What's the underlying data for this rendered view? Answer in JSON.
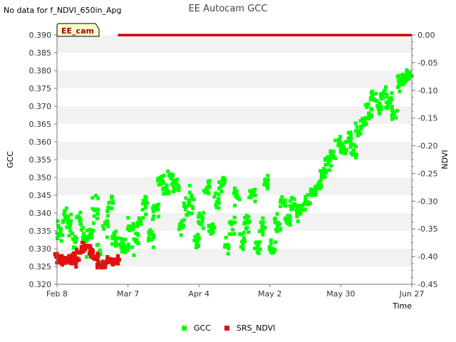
{
  "chart_data": {
    "type": "scatter",
    "title": "EE Autocam GCC",
    "note": "No data for f_NDVI_650in_Apg",
    "badge": "EE_cam",
    "xlabel": "Time",
    "ylabel": "GCC",
    "y2label": "NDVI",
    "xlim": [
      "2024-02-08",
      "2024-06-27"
    ],
    "ylim": [
      0.32,
      0.39
    ],
    "y2lim": [
      -0.45,
      0.0
    ],
    "x_ticks": [
      {
        "date": "2024-02-08",
        "label": "Feb 8"
      },
      {
        "date": "2024-03-07",
        "label": "Mar 7"
      },
      {
        "date": "2024-04-04",
        "label": "Apr 4"
      },
      {
        "date": "2024-05-02",
        "label": "May 2"
      },
      {
        "date": "2024-05-30",
        "label": "May 30"
      },
      {
        "date": "2024-06-27",
        "label": "Jun 27"
      }
    ],
    "y_ticks": [
      "0.320",
      "0.325",
      "0.330",
      "0.335",
      "0.340",
      "0.345",
      "0.350",
      "0.355",
      "0.360",
      "0.365",
      "0.370",
      "0.375",
      "0.380",
      "0.385",
      "0.390"
    ],
    "y2_ticks": [
      "-0.45",
      "-0.40",
      "-0.35",
      "-0.30",
      "-0.25",
      "-0.20",
      "-0.15",
      "-0.10",
      "-0.05",
      "0.00"
    ],
    "grid": "horizontal bands",
    "legend_position": "bottom",
    "series": [
      {
        "name": "GCC",
        "axis": "left",
        "color": "#00ff00",
        "x": [
          "2024-02-09",
          "2024-02-11",
          "2024-02-13",
          "2024-02-15",
          "2024-02-17",
          "2024-02-19",
          "2024-02-21",
          "2024-02-23",
          "2024-02-25",
          "2024-02-27",
          "2024-02-29",
          "2024-03-02",
          "2024-03-04",
          "2024-03-06",
          "2024-03-08",
          "2024-03-10",
          "2024-03-12",
          "2024-03-14",
          "2024-03-16",
          "2024-03-18",
          "2024-03-20",
          "2024-03-22",
          "2024-03-24",
          "2024-03-26",
          "2024-03-28",
          "2024-03-30",
          "2024-04-01",
          "2024-04-03",
          "2024-04-05",
          "2024-04-07",
          "2024-04-09",
          "2024-04-11",
          "2024-04-13",
          "2024-04-15",
          "2024-04-17",
          "2024-04-19",
          "2024-04-21",
          "2024-04-23",
          "2024-04-25",
          "2024-04-27",
          "2024-04-29",
          "2024-05-01",
          "2024-05-03",
          "2024-05-05",
          "2024-05-07",
          "2024-05-09",
          "2024-05-11",
          "2024-05-13",
          "2024-05-15",
          "2024-05-17",
          "2024-05-19",
          "2024-05-21",
          "2024-05-23",
          "2024-05-25",
          "2024-05-27",
          "2024-05-29",
          "2024-05-31",
          "2024-06-02",
          "2024-06-04",
          "2024-06-06",
          "2024-06-08",
          "2024-06-10",
          "2024-06-12",
          "2024-06-14",
          "2024-06-16",
          "2024-06-18",
          "2024-06-20",
          "2024-06-22",
          "2024-06-24",
          "2024-06-26"
        ],
        "y": [
          0.334,
          0.34,
          0.336,
          0.332,
          0.338,
          0.331,
          0.334,
          0.341,
          0.329,
          0.337,
          0.343,
          0.333,
          0.331,
          0.33,
          0.336,
          0.332,
          0.338,
          0.343,
          0.334,
          0.341,
          0.349,
          0.346,
          0.35,
          0.348,
          0.336,
          0.342,
          0.344,
          0.332,
          0.339,
          0.347,
          0.336,
          0.343,
          0.348,
          0.331,
          0.337,
          0.345,
          0.332,
          0.338,
          0.345,
          0.331,
          0.336,
          0.348,
          0.33,
          0.337,
          0.343,
          0.339,
          0.342,
          0.34,
          0.341,
          0.343,
          0.346,
          0.348,
          0.351,
          0.354,
          0.356,
          0.359,
          0.358,
          0.361,
          0.357,
          0.363,
          0.366,
          0.368,
          0.372,
          0.369,
          0.374,
          0.371,
          0.368,
          0.376,
          0.378,
          0.379
        ],
        "spread": [
          0.007,
          0.007,
          0.006,
          0.006,
          0.006,
          0.006,
          0.006,
          0.007,
          0.006,
          0.007,
          0.006,
          0.005,
          0.004,
          0.004,
          0.005,
          0.006,
          0.006,
          0.005,
          0.006,
          0.005,
          0.003,
          0.004,
          0.004,
          0.004,
          0.005,
          0.006,
          0.006,
          0.004,
          0.005,
          0.004,
          0.005,
          0.005,
          0.004,
          0.004,
          0.005,
          0.005,
          0.004,
          0.006,
          0.005,
          0.004,
          0.005,
          0.004,
          0.004,
          0.005,
          0.004,
          0.004,
          0.004,
          0.004,
          0.003,
          0.003,
          0.003,
          0.003,
          0.003,
          0.004,
          0.004,
          0.004,
          0.003,
          0.005,
          0.004,
          0.005,
          0.004,
          0.005,
          0.004,
          0.004,
          0.005,
          0.005,
          0.005,
          0.006,
          0.004,
          0.004
        ]
      },
      {
        "name": "SRS_NDVI",
        "axis": "right",
        "color": "#e01010",
        "x": [
          "2024-02-08",
          "2024-02-09",
          "2024-02-10",
          "2024-02-11",
          "2024-02-12",
          "2024-02-13",
          "2024-02-14",
          "2024-02-15",
          "2024-02-16",
          "2024-02-17",
          "2024-02-18",
          "2024-02-19",
          "2024-02-20",
          "2024-02-21",
          "2024-02-22",
          "2024-02-23",
          "2024-02-24",
          "2024-02-25",
          "2024-02-26",
          "2024-02-27",
          "2024-02-28",
          "2024-02-29",
          "2024-03-01",
          "2024-03-02",
          "2024-03-03"
        ],
        "y": [
          -0.4,
          -0.405,
          -0.41,
          -0.402,
          -0.408,
          -0.405,
          -0.398,
          -0.412,
          -0.407,
          -0.392,
          -0.386,
          -0.38,
          -0.383,
          -0.395,
          -0.389,
          -0.4,
          -0.405,
          -0.416,
          -0.418,
          -0.411,
          -0.407,
          -0.404,
          -0.409,
          -0.412,
          -0.407
        ]
      },
      {
        "name": "SRS_NDVI",
        "axis": "right",
        "color": "#cc0000",
        "x": [
          "2024-03-03",
          "2024-06-27"
        ],
        "y": [
          0.0,
          0.0
        ],
        "style": "line"
      }
    ]
  }
}
